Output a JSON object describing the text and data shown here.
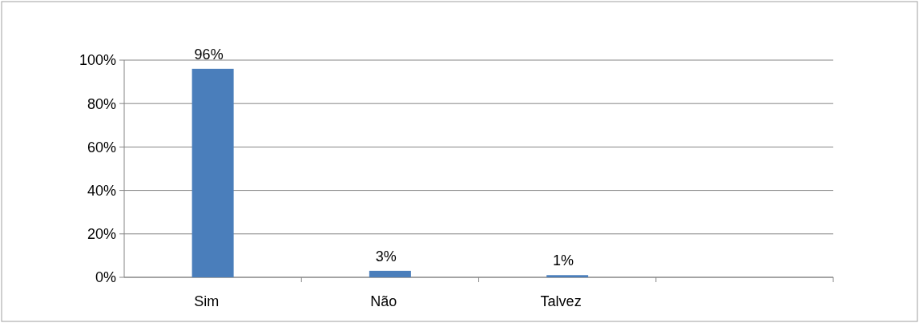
{
  "chart_data": {
    "type": "bar",
    "categories": [
      "Sim",
      "Não",
      "Talvez",
      null
    ],
    "values": [
      96,
      3,
      1,
      null
    ],
    "value_labels": [
      "96%",
      "3%",
      "1%",
      null
    ],
    "color": "#4a7ebb",
    "ylim": [
      0,
      100
    ],
    "yticks": [
      {
        "value": 0,
        "label": "0%"
      },
      {
        "value": 20,
        "label": "20%"
      },
      {
        "value": 40,
        "label": "40%"
      },
      {
        "value": 60,
        "label": "60%"
      },
      {
        "value": 80,
        "label": "80%"
      },
      {
        "value": 100,
        "label": "100%"
      }
    ],
    "grid": "y"
  }
}
